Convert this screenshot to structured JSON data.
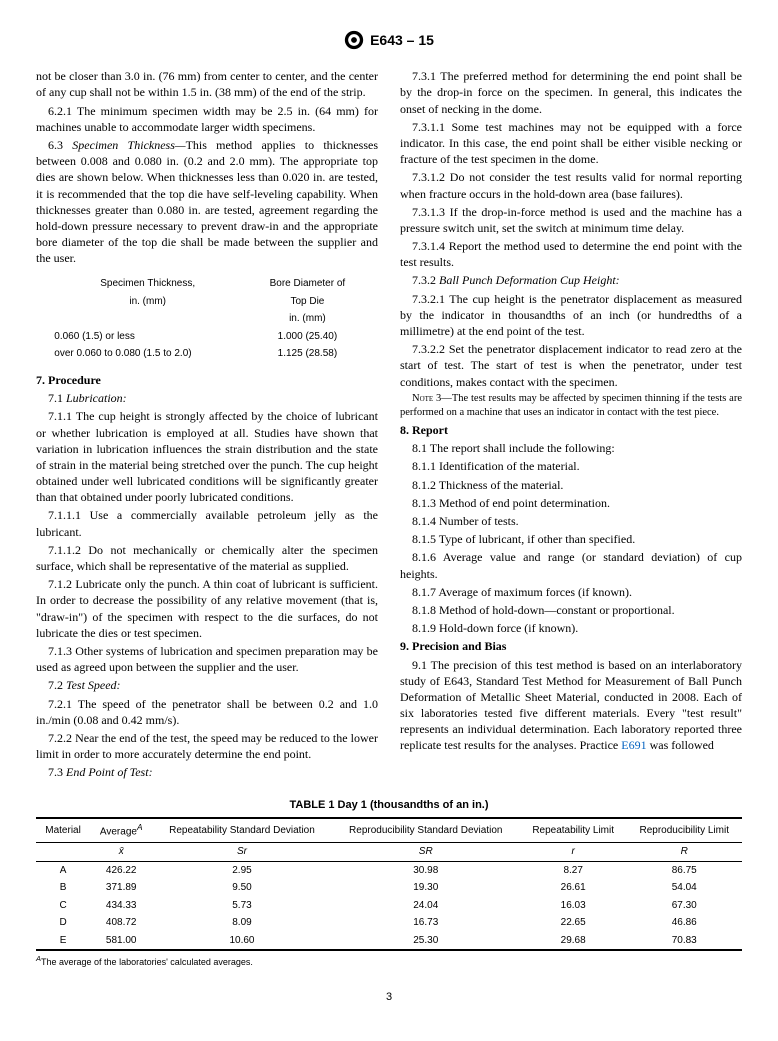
{
  "doc": {
    "designation": "E643 – 15",
    "page": "3"
  },
  "left": {
    "p_top": "not be closer than 3.0 in. (76 mm) from center to center, and the center of any cup shall not be within 1.5 in. (38 mm) of the end of the strip.",
    "p6_2_1": "6.2.1 The minimum specimen width may be 2.5 in. (64 mm) for machines unable to accommodate larger width specimens.",
    "p6_3_label": "6.3 ",
    "p6_3_ital": "Specimen Thickness—",
    "p6_3_rest": "This method applies to thicknesses between 0.008 and 0.080 in. (0.2 and 2.0 mm). The appropriate top dies are shown below. When thicknesses less than 0.020 in. are tested, it is recommended that the top die have self-leveling capability. When thicknesses greater than 0.080 in. are tested, agreement regarding the hold-down pressure necessary to prevent draw-in and the appropriate bore diameter of the top die shall be made between the supplier and the user.",
    "mini_table": {
      "head1a": "Specimen Thickness,",
      "head1b": "in. (mm)",
      "head2a": "Bore Diameter of",
      "head2b": "Top Die",
      "head2c": "in. (mm)",
      "r1c1": "0.060 (1.5) or less",
      "r1c2": "1.000 (25.40)",
      "r2c1": "over 0.060 to 0.080 (1.5 to 2.0)",
      "r2c2": "1.125 (28.58)"
    },
    "s7": "7. Procedure",
    "p7_1": "7.1 ",
    "p7_1_ital": "Lubrication:",
    "p7_1_1": "7.1.1 The cup height is strongly affected by the choice of lubricant or whether lubrication is employed at all. Studies have shown that variation in lubrication influences the strain distribution and the state of strain in the material being stretched over the punch. The cup height obtained under well lubricated conditions will be significantly greater than that obtained under poorly lubricated conditions.",
    "p7_1_1_1": "7.1.1.1 Use a commercially available petroleum jelly as the lubricant.",
    "p7_1_1_2": "7.1.1.2 Do not mechanically or chemically alter the specimen surface, which shall be representative of the material as supplied.",
    "p7_1_2": "7.1.2 Lubricate only the punch. A thin coat of lubricant is sufficient. In order to decrease the possibility of any relative movement (that is, \"draw-in\") of the specimen with respect to the die surfaces, do not lubricate the dies or test specimen.",
    "p7_1_3": "7.1.3 Other systems of lubrication and specimen preparation may be used as agreed upon between the supplier and the user.",
    "p7_2": "7.2 ",
    "p7_2_ital": "Test Speed:",
    "p7_2_1": "7.2.1 The speed of the penetrator shall be between 0.2 and 1.0 in./min (0.08 and 0.42 mm/s).",
    "p7_2_2": "7.2.2 Near the end of the test, the speed may be reduced to the lower limit in order to more accurately determine the end point.",
    "p7_3": "7.3 ",
    "p7_3_ital": "End Point of Test:"
  },
  "right": {
    "p7_3_1": "7.3.1 The preferred method for determining the end point shall be by the drop-in force on the specimen. In general, this indicates the onset of necking in the dome.",
    "p7_3_1_1": "7.3.1.1 Some test machines may not be equipped with a force indicator. In this case, the end point shall be either visible necking or fracture of the test specimen in the dome.",
    "p7_3_1_2": "7.3.1.2 Do not consider the test results valid for normal reporting when fracture occurs in the hold-down area (base failures).",
    "p7_3_1_3": "7.3.1.3 If the drop-in-force method is used and the machine has a pressure switch unit, set the switch at minimum time delay.",
    "p7_3_1_4": "7.3.1.4 Report the method used to determine the end point with the test results.",
    "p7_3_2": "7.3.2 ",
    "p7_3_2_ital": "Ball Punch Deformation Cup Height:",
    "p7_3_2_1": "7.3.2.1 The cup height is the penetrator displacement as measured by the indicator in thousandths of an inch (or hundredths of a millimetre) at the end point of the test.",
    "p7_3_2_2": "7.3.2.2 Set the penetrator displacement indicator to read zero at the start of test. The start of test is when the penetrator, under test conditions, makes contact with the specimen.",
    "note3_label": "Note 3—",
    "note3": "The test results may be affected by specimen thinning if the tests are performed on a machine that uses an indicator in contact with the test piece.",
    "s8": "8. Report",
    "p8_1": "8.1 The report shall include the following:",
    "p8_1_1": "8.1.1 Identification of the material.",
    "p8_1_2": "8.1.2 Thickness of the material.",
    "p8_1_3": "8.1.3 Method of end point determination.",
    "p8_1_4": "8.1.4 Number of tests.",
    "p8_1_5": "8.1.5 Type of lubricant, if other than specified.",
    "p8_1_6": "8.1.6 Average value and range (or standard deviation) of cup heights.",
    "p8_1_7": "8.1.7 Average of maximum forces (if known).",
    "p8_1_8": "8.1.8 Method of hold-down—constant or proportional.",
    "p8_1_9": "8.1.9 Hold-down force (if known).",
    "s9": "9. Precision and Bias",
    "p9_1a": "9.1 The precision of this test method is based on an interlaboratory study of E643, Standard Test Method for Measurement of Ball Punch Deformation of Metallic Sheet Material, conducted in 2008. Each of six laboratories tested five different materials. Every \"test result\" represents an individual determination. Each laboratory reported three replicate test results for the analyses. Practice ",
    "p9_1_link": "E691",
    "p9_1b": " was followed"
  },
  "table1": {
    "title": "TABLE 1 Day 1 (thousandths of an in.)",
    "headers": [
      "Material",
      "Average",
      "Repeatability Standard Deviation",
      "Reproducibility Standard Deviation",
      "Repeatability Limit",
      "Reproducibility Limit"
    ],
    "avg_super": "A",
    "symbols": [
      "",
      "x̄",
      "Sr",
      "SR",
      "r",
      "R"
    ],
    "rows": [
      [
        "A",
        "426.22",
        "2.95",
        "30.98",
        "8.27",
        "86.75"
      ],
      [
        "B",
        "371.89",
        "9.50",
        "19.30",
        "26.61",
        "54.04"
      ],
      [
        "C",
        "434.33",
        "5.73",
        "24.04",
        "16.03",
        "67.30"
      ],
      [
        "D",
        "408.72",
        "8.09",
        "16.73",
        "22.65",
        "46.86"
      ],
      [
        "E",
        "581.00",
        "10.60",
        "25.30",
        "29.68",
        "70.83"
      ]
    ],
    "footnote_sup": "A",
    "footnote": "The average of the laboratories' calculated averages."
  }
}
